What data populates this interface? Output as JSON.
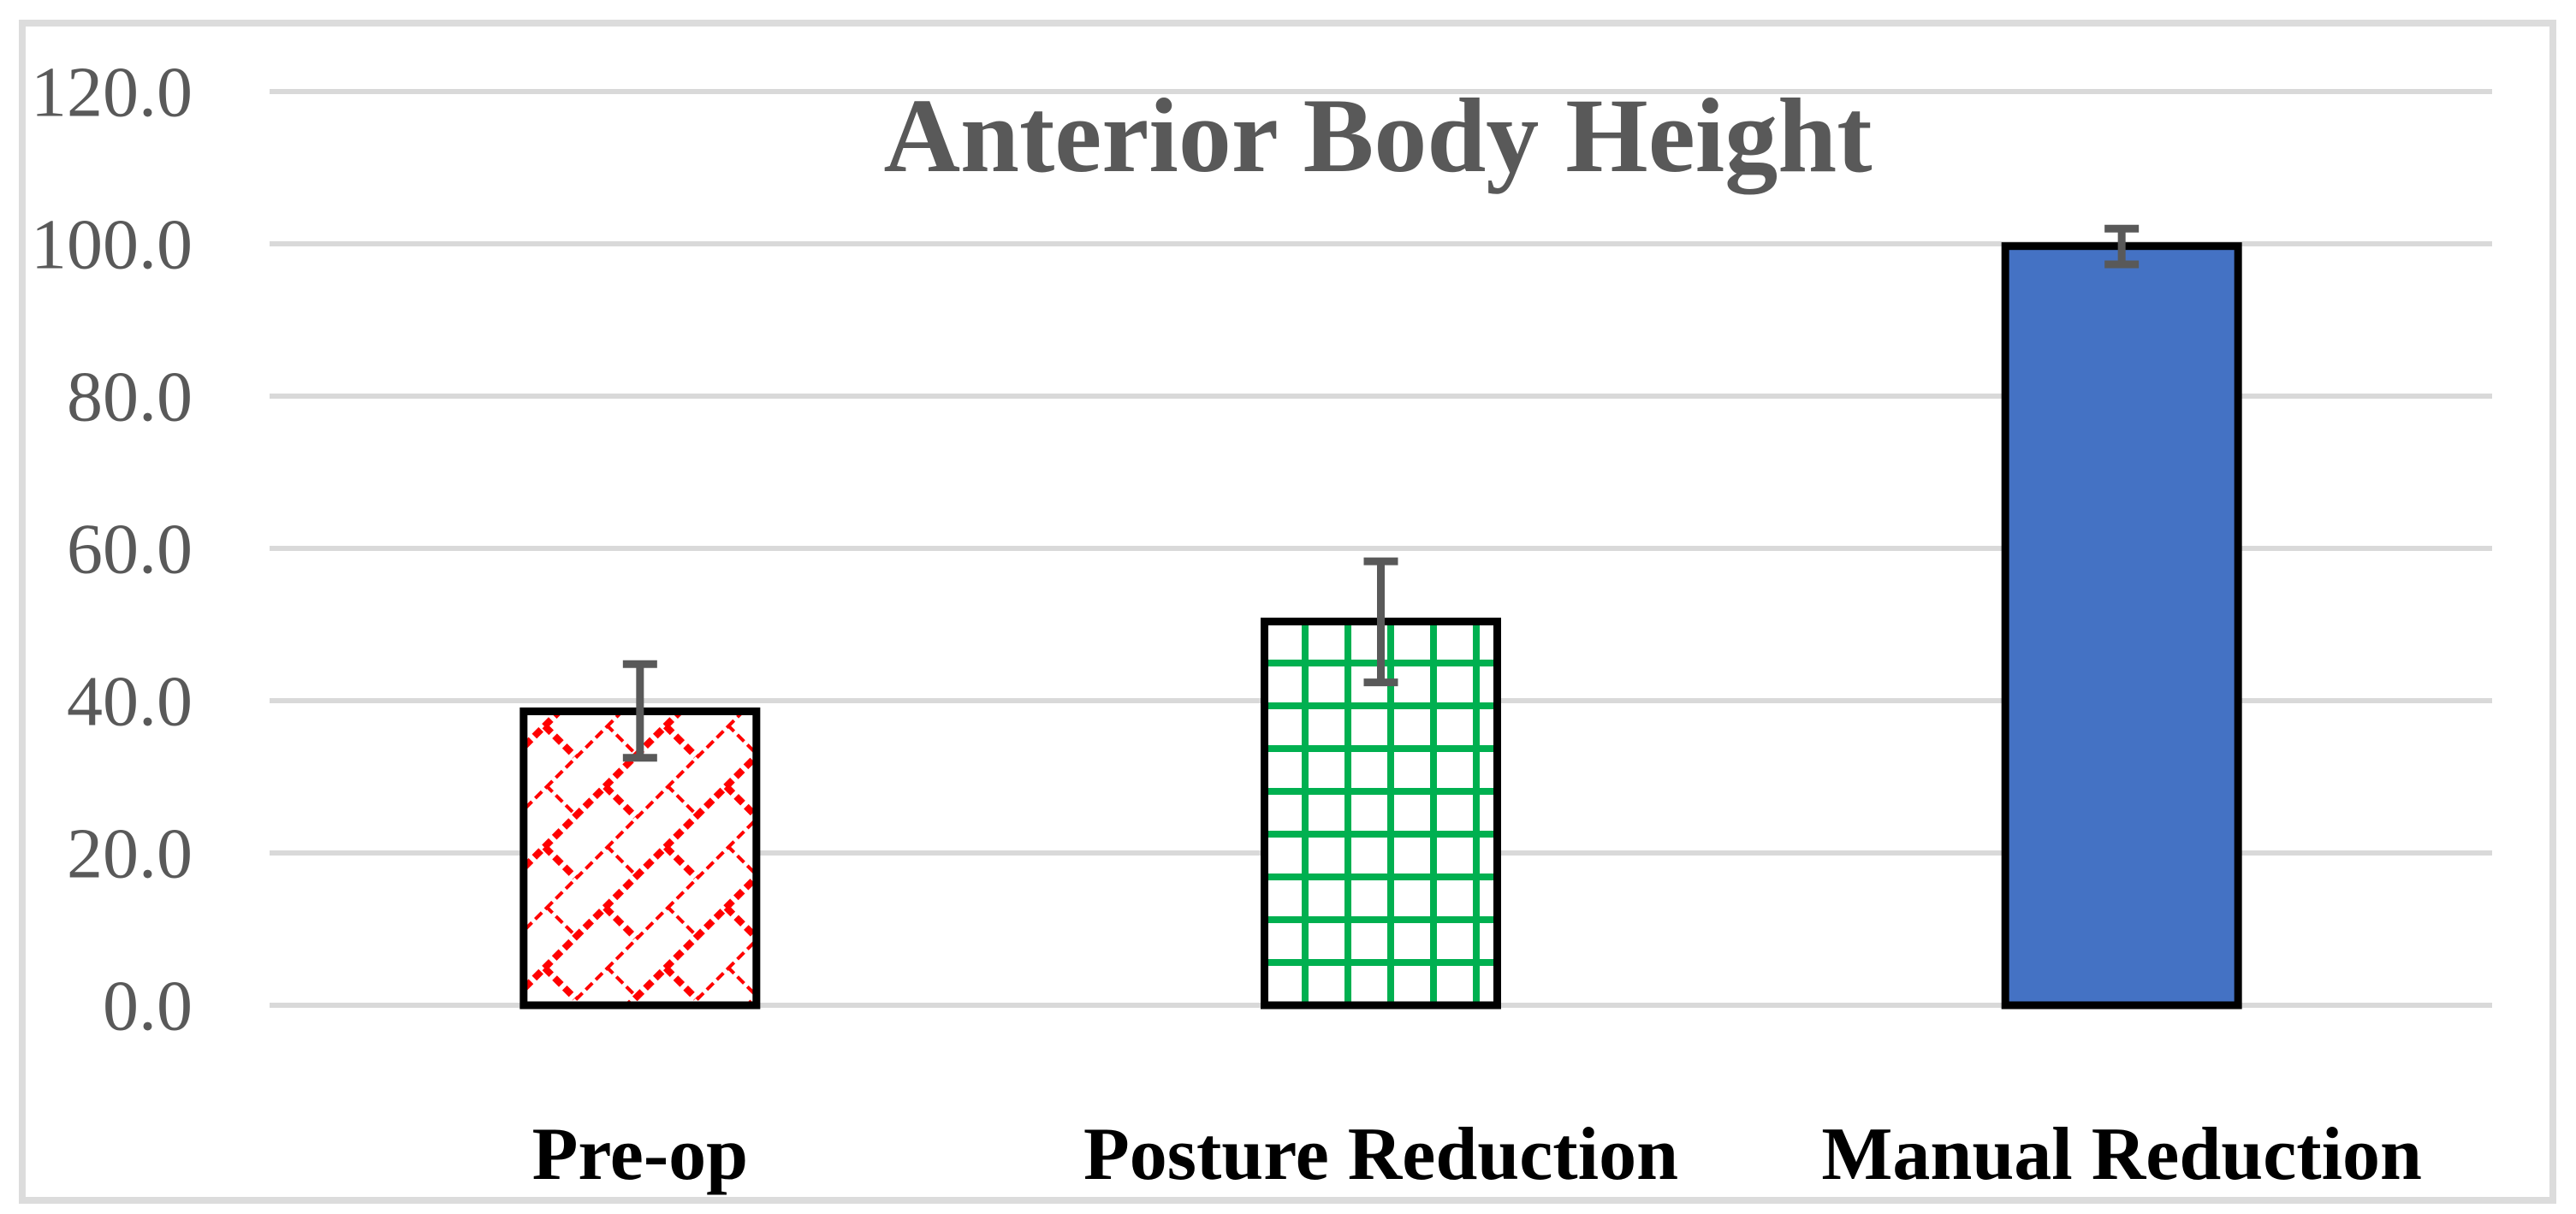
{
  "chart_data": {
    "type": "bar",
    "title": "Anterior Body Height",
    "categories": [
      "Pre-op",
      "Posture Reduction",
      "Manual Reduction"
    ],
    "values": [
      38.6,
      50.4,
      99.7
    ],
    "error_low": [
      32.5,
      42.4,
      97.3
    ],
    "error_high": [
      44.8,
      58.3,
      102.0
    ],
    "ylim": [
      0,
      120
    ],
    "yticks": [
      0,
      20,
      40,
      60,
      80,
      100,
      120
    ],
    "ytick_labels": [
      "0.0",
      "20.0",
      "40.0",
      "60.0",
      "80.0",
      "100.0",
      "120.0"
    ],
    "xlabel": "",
    "ylabel": "",
    "grid": true,
    "legend": false,
    "bar_styles": [
      {
        "fill": "pattern",
        "pattern": "diagonal-brick",
        "color": "#FF0000",
        "background": "#FFFFFF",
        "border": "#000000"
      },
      {
        "fill": "pattern",
        "pattern": "grid",
        "color": "#00B050",
        "background": "#FFFFFF",
        "border": "#000000"
      },
      {
        "fill": "solid",
        "color": "#4472C4",
        "border": "#000000"
      }
    ],
    "colors": {
      "title": "#595959",
      "tick_labels": "#595959",
      "category_labels": "#000000",
      "gridlines": "#D9D9D9",
      "error_bars": "#595959",
      "figure_border": "#DCDCDC",
      "background": "#FFFFFF"
    }
  }
}
